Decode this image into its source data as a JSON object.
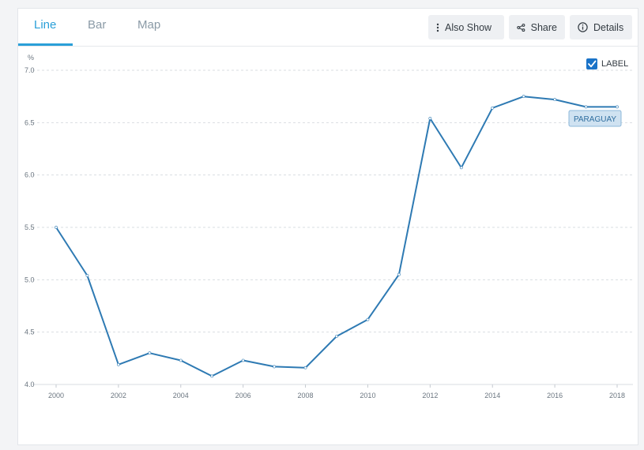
{
  "tabs": [
    {
      "label": "Line",
      "active": true
    },
    {
      "label": "Bar",
      "active": false
    },
    {
      "label": "Map",
      "active": false
    }
  ],
  "toolbar": {
    "also_show_label": "Also Show",
    "share_label": "Share",
    "details_label": "Details"
  },
  "label_toggle": {
    "label": "LABEL",
    "checked": true
  },
  "colors": {
    "accent": "#2a9fd8",
    "series": "#2e7ab3",
    "badge_bg": "#cfe2f1",
    "badge_border": "#8db8da"
  },
  "chart_data": {
    "type": "line",
    "ylabel": "%",
    "ylim": [
      4.0,
      7.0
    ],
    "yticks": [
      "4.0",
      "4.5",
      "5.0",
      "5.5",
      "6.0",
      "6.5",
      "7.0"
    ],
    "xlim": [
      2000,
      2018
    ],
    "xticks": [
      "2000",
      "2002",
      "2004",
      "2006",
      "2008",
      "2010",
      "2012",
      "2014",
      "2016",
      "2018"
    ],
    "grid": true,
    "series": [
      {
        "name": "PARAGUAY",
        "x": [
          2000,
          2001,
          2002,
          2003,
          2004,
          2005,
          2006,
          2007,
          2008,
          2009,
          2010,
          2011,
          2012,
          2013,
          2014,
          2015,
          2016,
          2017,
          2018
        ],
        "values": [
          5.5,
          5.04,
          4.19,
          4.3,
          4.23,
          4.08,
          4.23,
          4.17,
          4.16,
          4.46,
          4.62,
          5.05,
          6.54,
          6.07,
          6.64,
          6.75,
          6.72,
          6.65,
          6.65
        ]
      }
    ]
  }
}
